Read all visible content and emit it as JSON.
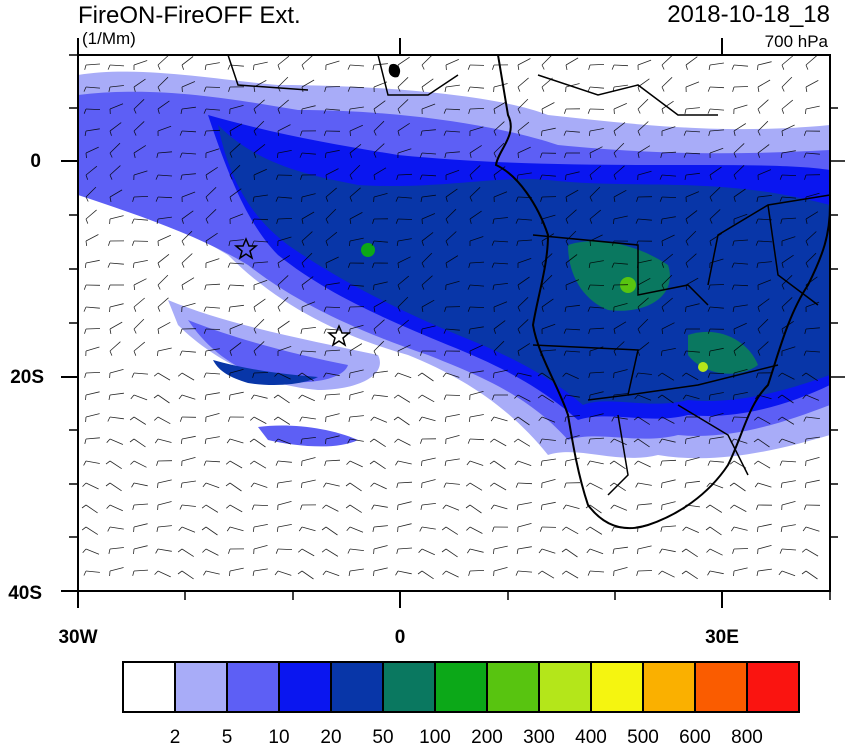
{
  "header": {
    "title": "FireON-FireOFF Ext.",
    "units": "(1/Mm)",
    "datetime": "2018-10-18_18",
    "level": "700 hPa"
  },
  "axes": {
    "y_ticks": [
      "0",
      "20S",
      "40S"
    ],
    "x_ticks": [
      "30W",
      "0",
      "30E"
    ]
  },
  "colorbar": {
    "labels": [
      "2",
      "5",
      "10",
      "20",
      "50",
      "100",
      "200",
      "300",
      "400",
      "500",
      "600",
      "800"
    ],
    "colors": [
      "#ffffff",
      "#a8acf8",
      "#5d5ff5",
      "#0a16f0",
      "#0836a8",
      "#0a7860",
      "#0ca818",
      "#58c410",
      "#b4e61a",
      "#f5f510",
      "#fab000",
      "#fa5c00",
      "#fa1410"
    ]
  },
  "markers": {
    "icon": "star-marker-icon",
    "count": 2
  }
}
